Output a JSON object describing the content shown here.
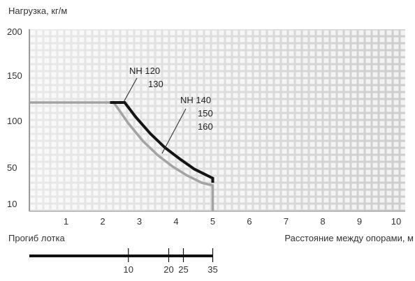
{
  "chart_data": {
    "type": "line",
    "ylabel": "Нагрузка, кг/м",
    "xlabel": "Расстояние между опорами, м",
    "xlim": [
      0,
      10.5
    ],
    "y_ticks": [
      {
        "label": "200",
        "value": 200
      },
      {
        "label": "150",
        "value": 150
      },
      {
        "label": "100",
        "value": 100
      },
      {
        "label": "50",
        "value": 50
      },
      {
        "label": "10",
        "value": 10
      }
    ],
    "x_ticks": [
      1,
      2,
      3,
      4,
      5,
      6,
      7,
      8,
      9,
      10
    ],
    "grid": true,
    "series": [
      {
        "labels": [
          "NH 120",
          "130"
        ],
        "color": "#a3a3a3",
        "x": [
          0,
          2.3,
          2.7,
          3.1,
          3.5,
          3.9,
          4.3,
          4.7,
          5.0,
          5.0
        ],
        "y": [
          120,
          120,
          97,
          78,
          63,
          51,
          41,
          33,
          30,
          0
        ]
      },
      {
        "labels": [
          "NH 140",
          "150",
          "160"
        ],
        "color": "#141414",
        "x": [
          2.2,
          2.6,
          2.9,
          3.3,
          3.7,
          4.1,
          4.5,
          4.9,
          5.0,
          5.0
        ],
        "y": [
          120,
          120,
          104,
          86,
          71,
          59,
          48,
          40,
          38,
          33
        ]
      }
    ],
    "deflection": {
      "label": "Прогиб лотка",
      "ticks": [
        {
          "label": "10",
          "x": 2.7
        },
        {
          "label": "20",
          "x": 3.8
        },
        {
          "label": "25",
          "x": 4.2
        },
        {
          "label": "35",
          "x": 5.0
        }
      ]
    }
  }
}
